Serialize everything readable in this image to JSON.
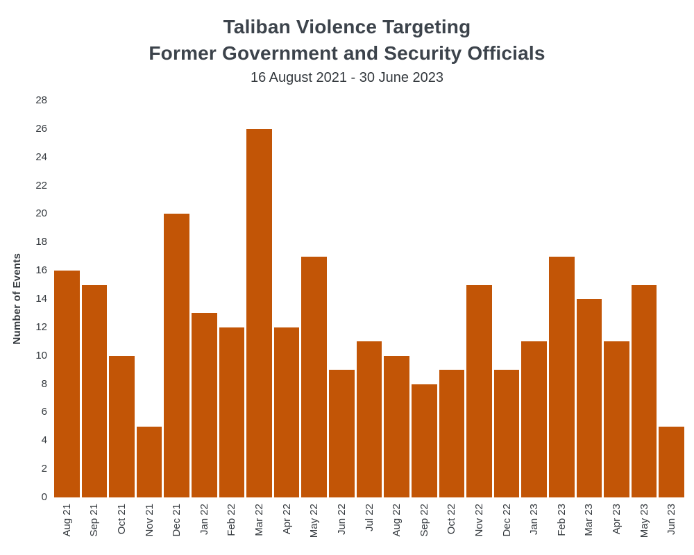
{
  "header": {
    "title_line1": "Taliban Violence Targeting",
    "title_line2": "Former Government and Security Officials",
    "subtitle": "16 August 2021 - 30 June 2023"
  },
  "chart_data": {
    "type": "bar",
    "title": "Taliban Violence Targeting Former Government and Security Officials",
    "subtitle": "16 August 2021 - 30 June 2023",
    "xlabel": "",
    "ylabel": "Number of Events",
    "categories": [
      "Aug 21",
      "Sep 21",
      "Oct 21",
      "Nov 21",
      "Dec 21",
      "Jan 22",
      "Feb 22",
      "Mar 22",
      "Apr 22",
      "May 22",
      "Jun 22",
      "Jul 22",
      "Aug 22",
      "Sep 22",
      "Oct 22",
      "Nov 22",
      "Dec 22",
      "Jan 23",
      "Feb 23",
      "Mar 23",
      "Apr 23",
      "May 23",
      "Jun 23"
    ],
    "values": [
      16,
      15,
      10,
      5,
      20,
      13,
      12,
      26,
      12,
      17,
      9,
      11,
      10,
      8,
      9,
      15,
      9,
      11,
      17,
      14,
      11,
      15,
      5
    ],
    "ylim": [
      0,
      28
    ],
    "ytick_step": 2,
    "grid": false,
    "legend": false,
    "bar_color": "#C25506",
    "xlabel_rotation": 90
  },
  "colors": {
    "bar": "#C25506",
    "title_text": "#3C434B",
    "axis_text": "#33383D",
    "background": "#FFFFFF"
  }
}
